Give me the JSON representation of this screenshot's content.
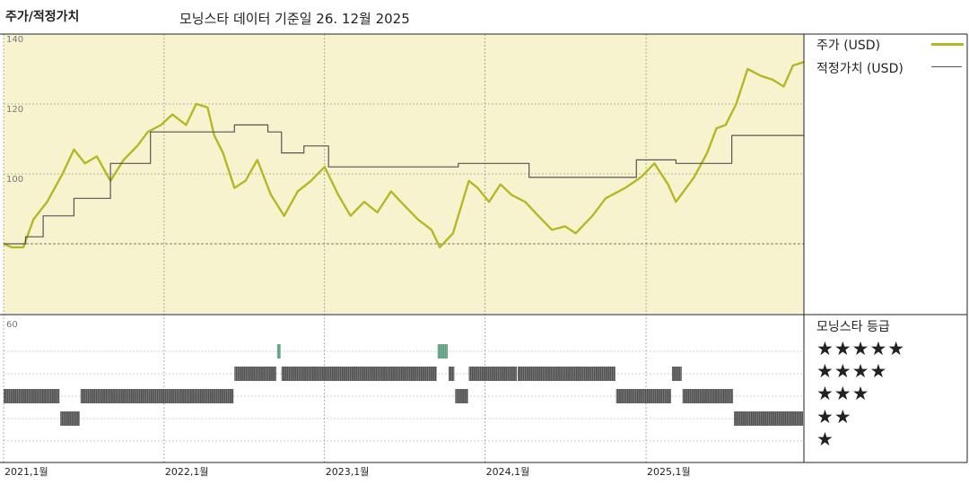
{
  "header": {
    "title": "주가/적정가치",
    "subtitle": "모닝스타 데이터 기준일 26. 12월 2025"
  },
  "colors": {
    "price": "#b5b826",
    "fair_value": "#555555",
    "plot_bg": "#f7f3cf",
    "rating_normal": "#333333",
    "rating_highlight": "#3f8c6a"
  },
  "legend": {
    "price_label": "주가 (USD)",
    "fair_value_label": "적정가치 (USD)",
    "rating_title": "모닝스타 등급",
    "star_rows": [
      "★★★★★",
      "★★★★",
      "★★★",
      "★★",
      "★"
    ]
  },
  "chart_data": {
    "type": "line",
    "x_type": "date",
    "x_range": [
      "2021-01-01",
      "2025-12-26"
    ],
    "x_ticks": [
      "2021-01-01",
      "2022-01-01",
      "2023-01-01",
      "2024-01-01",
      "2025-01-01"
    ],
    "x_tick_labels": [
      "2021,1월",
      "2022,1월",
      "2023,1월",
      "2024,1월",
      "2025,1월"
    ],
    "price_axis": {
      "ylim": [
        60,
        140
      ],
      "tick_labels": [
        "140",
        "120",
        "100"
      ],
      "grid_values": [
        120,
        100,
        80
      ]
    },
    "rating_axis": {
      "tick_label": "60"
    },
    "series": [
      {
        "name": "주가 (USD)",
        "kind": "price",
        "points": [
          [
            "2021-01-01",
            80
          ],
          [
            "2021-01-20",
            79
          ],
          [
            "2021-02-15",
            79
          ],
          [
            "2021-03-10",
            87
          ],
          [
            "2021-04-10",
            92
          ],
          [
            "2021-05-15",
            100
          ],
          [
            "2021-06-10",
            107
          ],
          [
            "2021-07-05",
            103
          ],
          [
            "2021-08-01",
            105
          ],
          [
            "2021-09-01",
            98
          ],
          [
            "2021-10-01",
            104
          ],
          [
            "2021-11-01",
            108
          ],
          [
            "2021-11-25",
            112
          ],
          [
            "2021-12-25",
            114
          ],
          [
            "2022-01-20",
            117
          ],
          [
            "2022-02-20",
            114
          ],
          [
            "2022-03-15",
            120
          ],
          [
            "2022-04-10",
            119
          ],
          [
            "2022-04-25",
            111
          ],
          [
            "2022-05-15",
            106
          ],
          [
            "2022-06-10",
            96
          ],
          [
            "2022-07-05",
            98
          ],
          [
            "2022-08-01",
            104
          ],
          [
            "2022-09-01",
            94
          ],
          [
            "2022-10-01",
            88
          ],
          [
            "2022-11-01",
            95
          ],
          [
            "2022-12-01",
            98
          ],
          [
            "2023-01-01",
            102
          ],
          [
            "2023-02-01",
            94
          ],
          [
            "2023-03-01",
            88
          ],
          [
            "2023-04-01",
            92
          ],
          [
            "2023-05-01",
            89
          ],
          [
            "2023-06-01",
            95
          ],
          [
            "2023-07-01",
            91
          ],
          [
            "2023-08-01",
            87
          ],
          [
            "2023-09-01",
            84
          ],
          [
            "2023-09-20",
            79
          ],
          [
            "2023-10-20",
            83
          ],
          [
            "2023-11-25",
            98
          ],
          [
            "2023-12-15",
            96
          ],
          [
            "2024-01-10",
            92
          ],
          [
            "2024-02-05",
            97
          ],
          [
            "2024-03-01",
            94
          ],
          [
            "2024-04-01",
            92
          ],
          [
            "2024-05-01",
            88
          ],
          [
            "2024-06-01",
            84
          ],
          [
            "2024-07-01",
            85
          ],
          [
            "2024-07-25",
            83
          ],
          [
            "2024-09-01",
            88
          ],
          [
            "2024-10-01",
            93
          ],
          [
            "2024-11-15",
            96
          ],
          [
            "2024-12-20",
            99
          ],
          [
            "2025-01-20",
            103
          ],
          [
            "2025-02-20",
            97
          ],
          [
            "2025-03-10",
            92
          ],
          [
            "2025-04-20",
            99
          ],
          [
            "2025-05-20",
            106
          ],
          [
            "2025-06-10",
            113
          ],
          [
            "2025-07-01",
            114
          ],
          [
            "2025-07-25",
            120
          ],
          [
            "2025-08-20",
            130
          ],
          [
            "2025-09-20",
            128
          ],
          [
            "2025-10-15",
            127
          ],
          [
            "2025-11-10",
            125
          ],
          [
            "2025-12-01",
            131
          ],
          [
            "2025-12-26",
            132
          ]
        ]
      },
      {
        "name": "적정가치 (USD)",
        "kind": "fair_value",
        "step": true,
        "points": [
          [
            "2021-01-01",
            80
          ],
          [
            "2021-02-20",
            82
          ],
          [
            "2021-04-01",
            88
          ],
          [
            "2021-06-10",
            93
          ],
          [
            "2021-09-01",
            103
          ],
          [
            "2021-12-01",
            112
          ],
          [
            "2022-06-10",
            114
          ],
          [
            "2022-08-25",
            112
          ],
          [
            "2022-09-25",
            106
          ],
          [
            "2022-11-15",
            108
          ],
          [
            "2023-01-10",
            102
          ],
          [
            "2023-11-01",
            103
          ],
          [
            "2024-04-10",
            99
          ],
          [
            "2024-10-10",
            99
          ],
          [
            "2024-12-10",
            104
          ],
          [
            "2025-01-20",
            104
          ],
          [
            "2025-03-10",
            103
          ],
          [
            "2025-07-15",
            111
          ],
          [
            "2025-12-26",
            111
          ]
        ]
      }
    ],
    "rating_bands": [
      [
        "2021-01-01",
        "2021-05-10",
        3
      ],
      [
        "2021-05-10",
        "2021-06-25",
        2
      ],
      [
        "2021-06-25",
        "2022-06-10",
        3
      ],
      [
        "2022-06-10",
        "2022-09-15",
        4
      ],
      [
        "2022-09-15",
        "2022-09-25",
        5
      ],
      [
        "2022-09-25",
        "2023-09-15",
        4
      ],
      [
        "2023-09-15",
        "2023-10-10",
        5
      ],
      [
        "2023-10-10",
        "2023-10-25",
        4
      ],
      [
        "2023-10-25",
        "2023-11-25",
        3
      ],
      [
        "2023-11-25",
        "2024-03-15",
        4
      ],
      [
        "2024-03-15",
        "2024-10-25",
        4
      ],
      [
        "2024-10-25",
        "2025-03-01",
        3
      ],
      [
        "2025-03-01",
        "2025-03-25",
        4
      ],
      [
        "2025-03-25",
        "2025-07-20",
        3
      ],
      [
        "2025-07-20",
        "2025-12-26",
        2
      ]
    ]
  }
}
